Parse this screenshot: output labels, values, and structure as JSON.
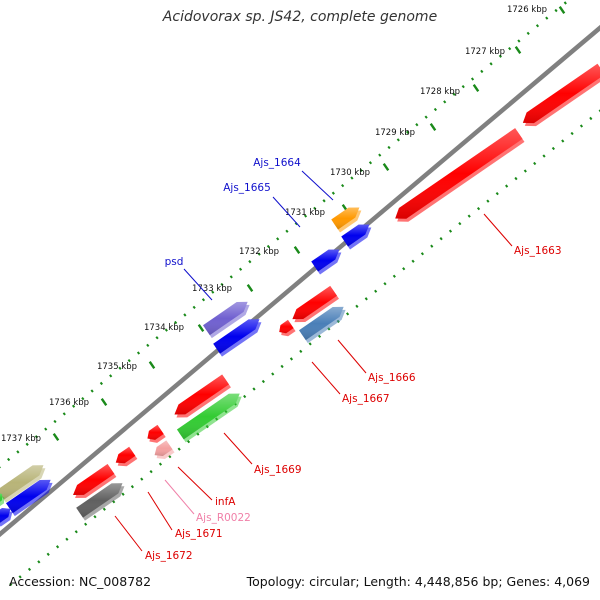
{
  "title": "Acidovorax sp. JS42, complete genome",
  "footer": {
    "accession": "Accession: NC_008782",
    "topology": "Topology: circular; Length: 4,448,856 bp; Genes: 4,069"
  },
  "colors": {
    "backbone": "#808080",
    "tick": "#1a8a1a",
    "label_blue": "#1010cc",
    "label_red": "#dd0000",
    "label_pink": "#f080a8"
  },
  "ticks": [
    "1726 kbp",
    "1727 kbp",
    "1728 kbp",
    "1729 kbp",
    "1730 kbp",
    "1731 kbp",
    "1732 kbp",
    "1733 kbp",
    "1734 kbp",
    "1735 kbp",
    "1736 kbp",
    "1737 kbp"
  ],
  "genes": [
    {
      "label": "Ajs_1663",
      "color": "#ff0000",
      "strand": "-"
    },
    {
      "label": "Ajs_1664",
      "color": "#ff9900",
      "strand": "+"
    },
    {
      "label": "Ajs_1665",
      "color": "#0000ee",
      "strand": "+"
    },
    {
      "label": "psd",
      "color": "#7060d0",
      "strand": "+"
    },
    {
      "label": "Ajs_1666",
      "color": "#ff0000",
      "strand": "-"
    },
    {
      "label": "Ajs_1667",
      "color": "#4a7fb8",
      "strand": "+"
    },
    {
      "label": "Ajs_1669",
      "color": "#ff0000",
      "strand": "-"
    },
    {
      "label": "infA",
      "color": "#ff0000",
      "strand": "-"
    },
    {
      "label": "Ajs_R0022",
      "color": "#f4a0a0",
      "strand": "-"
    },
    {
      "label": "Ajs_1671",
      "color": "#ff0000",
      "strand": "-"
    },
    {
      "label": "Ajs_1672",
      "color": "#ff0000",
      "strand": "-"
    }
  ],
  "unlabeled_genes": [
    {
      "color": "#ff0000",
      "strand": "-"
    },
    {
      "color": "#0000ee",
      "strand": "+"
    },
    {
      "color": "#0000ee",
      "strand": "+"
    },
    {
      "color": "#33cc33",
      "strand": "+"
    },
    {
      "color": "#ff0000",
      "strand": "-"
    },
    {
      "color": "#606060",
      "strand": "+"
    },
    {
      "color": "#b8b478",
      "strand": "+"
    },
    {
      "color": "#0000ee",
      "strand": "+"
    }
  ]
}
